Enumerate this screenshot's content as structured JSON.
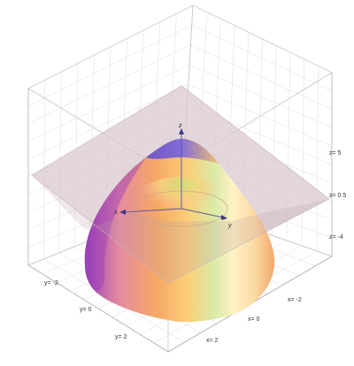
{
  "chart_data": {
    "type": "surface3d",
    "title": "",
    "description_visible": false,
    "surface": {
      "kind": "paraboloid",
      "z_formula_shape": "z = c - (x^2 + y^2)",
      "colormap": [
        "#8b3fc0",
        "#c75aa8",
        "#f3a06a",
        "#fbd27a",
        "#fff2b8",
        "#b9e3a0",
        "#6e6be0"
      ]
    },
    "plane": {
      "kind": "horizontal plane",
      "z_value": 0.5,
      "color": "#d9c9cf"
    },
    "axes": {
      "x": {
        "name": "x",
        "ticks": [
          "x= -2",
          "x= 0",
          "x= 2"
        ]
      },
      "y": {
        "name": "y",
        "ticks": [
          "y= -2",
          "y= 0",
          "y= 2"
        ]
      },
      "z": {
        "name": "z",
        "ticks": [
          "z= 5",
          "z= 0.5",
          "z= -4"
        ]
      }
    },
    "grid": true,
    "bounding_box": true
  }
}
